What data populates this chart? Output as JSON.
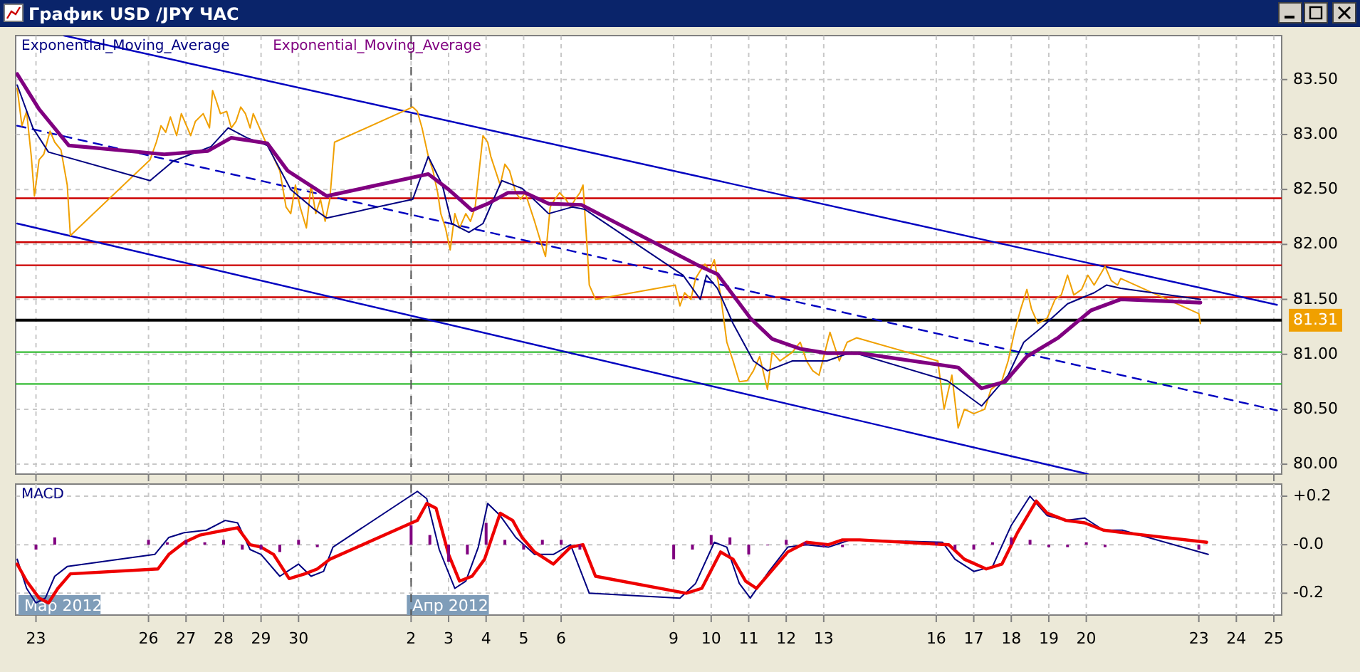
{
  "chart_data": [
    {
      "type": "line",
      "title": "График USD /JPY ЧАС",
      "xlim": [
        "2012-03-22T11:00",
        "2012-04-25T05:00"
      ],
      "ylim": [
        79.91,
        83.9
      ],
      "xticks": [
        {
          "value": "2012-03-23",
          "label": null
        },
        {
          "value": "2012-03-26",
          "label": null
        },
        {
          "value": "2012-03-27",
          "label": null
        },
        {
          "value": "2012-03-28",
          "label": null
        },
        {
          "value": "2012-03-29",
          "label": null
        },
        {
          "value": "2012-03-30",
          "label": null
        },
        {
          "value": "2012-04-02",
          "label": null
        },
        {
          "value": "2012-04-03",
          "label": null
        },
        {
          "value": "2012-04-04",
          "label": null
        },
        {
          "value": "2012-04-05",
          "label": null
        },
        {
          "value": "2012-04-06",
          "label": null
        },
        {
          "value": "2012-04-09",
          "label": null
        },
        {
          "value": "2012-04-10",
          "label": null
        },
        {
          "value": "2012-04-11",
          "label": null
        },
        {
          "value": "2012-04-12",
          "label": null
        },
        {
          "value": "2012-04-13",
          "label": null
        },
        {
          "value": "2012-04-16",
          "label": null
        },
        {
          "value": "2012-04-17",
          "label": null
        },
        {
          "value": "2012-04-18",
          "label": null
        },
        {
          "value": "2012-04-19",
          "label": null
        },
        {
          "value": "2012-04-20",
          "label": null
        },
        {
          "value": "2012-04-23",
          "label": null
        },
        {
          "value": "2012-04-24",
          "label": null
        },
        {
          "value": "2012-04-25",
          "label": null
        }
      ],
      "yticks": [
        {
          "value": 80,
          "label": "80.00"
        },
        {
          "value": 80.5,
          "label": "80.50"
        },
        {
          "value": 81,
          "label": "81.00"
        },
        {
          "value": 81.5,
          "label": "81.50"
        },
        {
          "value": 82,
          "label": "82.00"
        },
        {
          "value": 82.5,
          "label": "82.50"
        },
        {
          "value": 83,
          "label": "83.00"
        },
        {
          "value": 83.5,
          "label": "83.50"
        }
      ],
      "tick_labels": "y",
      "grid": true,
      "legend": "top left",
      "ref_lines": [
        {
          "axis": "y",
          "value": 82.42,
          "color": "#cc0000"
        },
        {
          "axis": "y",
          "value": 82.02,
          "color": "#cc0000"
        },
        {
          "axis": "y",
          "value": 81.81,
          "color": "#cc0000"
        },
        {
          "axis": "y",
          "value": 81.52,
          "color": "#cc0000"
        },
        {
          "axis": "y",
          "value": 81.02,
          "color": "#33bb33"
        },
        {
          "axis": "y",
          "value": 80.73,
          "color": "#33bb33"
        },
        {
          "axis": "y",
          "value": 81.31,
          "label": "81.31",
          "color": "#000000"
        },
        {
          "axis": "x",
          "value": "2012-04-02",
          "color": "#555555",
          "line_style": "dashed"
        }
      ],
      "series": [
        {
          "color": "#0000c0",
          "x": [
            "2012-03-23T18:00",
            "2012-04-25T02:00"
          ],
          "values": [
            83.9,
            81.45
          ]
        },
        {
          "color": "#0000c0",
          "line_style": "dashed",
          "x": [
            "2012-03-22T12:00",
            "2012-04-25T02:00"
          ],
          "values": [
            83.08,
            80.49
          ]
        },
        {
          "color": "#0000c0",
          "x": [
            "2012-03-22T12:00",
            "2012-04-20T01:00"
          ],
          "values": [
            82.19,
            79.91
          ]
        },
        {
          "color": "#f0a000",
          "x": [
            "2012-03-22T12:00",
            "2012-03-22T15:00",
            "2012-03-22T18:00",
            "2012-03-22T21:00",
            "2012-03-22T23:00",
            "2012-03-23T02:00",
            "2012-03-23T05:00",
            "2012-03-23T09:00",
            "2012-03-23T12:00",
            "2012-03-23T16:00",
            "2012-03-23T20:00",
            "2012-03-23T22:00",
            "2012-03-26T01:00",
            "2012-03-26T05:00",
            "2012-03-26T08:00",
            "2012-03-26T11:00",
            "2012-03-26T14:00",
            "2012-03-26T18:00",
            "2012-03-26T21:00",
            "2012-03-27T03:00",
            "2012-03-27T06:00",
            "2012-03-27T11:00",
            "2012-03-27T15:00",
            "2012-03-27T17:00",
            "2012-03-27T19:00",
            "2012-03-27T22:00",
            "2012-03-28T02:00",
            "2012-03-28T05:00",
            "2012-03-28T08:00",
            "2012-03-28T11:00",
            "2012-03-28T14:00",
            "2012-03-28T17:00",
            "2012-03-28T19:00",
            "2012-03-28T23:00",
            "2012-03-29T03:00",
            "2012-03-29T06:00",
            "2012-03-29T10:00",
            "2012-03-29T12:00",
            "2012-03-29T16:00",
            "2012-03-29T19:00",
            "2012-03-29T22:00",
            "2012-03-30T01:00",
            "2012-03-30T05:00",
            "2012-03-30T08:00",
            "2012-03-30T11:00",
            "2012-03-30T14:00",
            "2012-03-30T17:00",
            "2012-03-30T20:00",
            "2012-03-30T23:00",
            "2012-04-02T01:00",
            "2012-04-02T04:00",
            "2012-04-02T07:00",
            "2012-04-02T09:00",
            "2012-04-02T11:00",
            "2012-04-02T14:00",
            "2012-04-02T17:00",
            "2012-04-02T19:00",
            "2012-04-02T22:00",
            "2012-04-03T01:00",
            "2012-04-03T04:00",
            "2012-04-03T07:00",
            "2012-04-03T11:00",
            "2012-04-03T14:00",
            "2012-04-03T17:00",
            "2012-04-03T20:00",
            "2012-04-03T22:00",
            "2012-04-04T01:00",
            "2012-04-04T03:00",
            "2012-04-04T06:00",
            "2012-04-04T09:00",
            "2012-04-04T12:00",
            "2012-04-04T15:00",
            "2012-04-04T19:00",
            "2012-04-04T22:00",
            "2012-04-05T01:00",
            "2012-04-05T04:00",
            "2012-04-05T07:00",
            "2012-04-05T11:00",
            "2012-04-05T14:00",
            "2012-04-05T17:00",
            "2012-04-05T20:00",
            "2012-04-05T23:00",
            "2012-04-06T03:00",
            "2012-04-06T06:00",
            "2012-04-06T09:00",
            "2012-04-06T12:00",
            "2012-04-06T14:00",
            "2012-04-06T17:00",
            "2012-04-06T18:00",
            "2012-04-06T22:00",
            "2012-04-09T01:00",
            "2012-04-09T04:00",
            "2012-04-09T07:00",
            "2012-04-09T11:00",
            "2012-04-09T14:00",
            "2012-04-09T17:00",
            "2012-04-09T20:00",
            "2012-04-09T23:00",
            "2012-04-10T02:00",
            "2012-04-10T06:00",
            "2012-04-10T10:00",
            "2012-04-10T14:00",
            "2012-04-10T18:00",
            "2012-04-10T23:00",
            "2012-04-11T03:00",
            "2012-04-11T07:00",
            "2012-04-11T12:00",
            "2012-04-11T15:00",
            "2012-04-11T20:00",
            "2012-04-12T00:00",
            "2012-04-12T04:00",
            "2012-04-12T09:00",
            "2012-04-12T13:00",
            "2012-04-12T17:00",
            "2012-04-12T21:00",
            "2012-04-13T04:00",
            "2012-04-13T10:00",
            "2012-04-13T15:00",
            "2012-04-13T21:00",
            "2012-04-16T01:00",
            "2012-04-16T05:00",
            "2012-04-16T10:00",
            "2012-04-16T14:00",
            "2012-04-16T18:00",
            "2012-04-17T00:00",
            "2012-04-17T07:00",
            "2012-04-17T11:00",
            "2012-04-17T18:00",
            "2012-04-17T22:00",
            "2012-04-18T02:00",
            "2012-04-18T06:00",
            "2012-04-18T10:00",
            "2012-04-18T13:00",
            "2012-04-18T17:00",
            "2012-04-18T23:00",
            "2012-04-19T04:00",
            "2012-04-19T08:00",
            "2012-04-19T12:00",
            "2012-04-19T16:00",
            "2012-04-19T21:00",
            "2012-04-20T01:00",
            "2012-04-20T05:00",
            "2012-04-20T12:00",
            "2012-04-20T16:00",
            "2012-04-20T20:00",
            "2012-04-20T22:00",
            "2012-04-23T00:00",
            "2012-04-23T01:00"
          ],
          "values": [
            83.42,
            83.08,
            83.21,
            82.8,
            82.44,
            82.77,
            82.82,
            83.03,
            82.93,
            82.86,
            82.54,
            82.08,
            82.77,
            82.93,
            83.08,
            83.02,
            83.16,
            82.99,
            83.19,
            82.99,
            83.12,
            83.19,
            83.06,
            83.4,
            83.32,
            83.19,
            83.21,
            83.06,
            83.12,
            83.25,
            83.19,
            83.06,
            83.19,
            83.06,
            82.93,
            82.86,
            82.73,
            82.67,
            82.34,
            82.28,
            82.54,
            82.34,
            82.15,
            82.54,
            82.28,
            82.41,
            82.21,
            82.41,
            82.93,
            83.25,
            83.21,
            83.06,
            82.93,
            82.8,
            82.67,
            82.47,
            82.28,
            82.15,
            81.95,
            82.28,
            82.15,
            82.28,
            82.21,
            82.34,
            82.73,
            82.99,
            82.93,
            82.8,
            82.67,
            82.54,
            82.73,
            82.67,
            82.47,
            82.41,
            82.47,
            82.34,
            82.21,
            82.02,
            81.89,
            82.34,
            82.41,
            82.47,
            82.41,
            82.34,
            82.41,
            82.47,
            82.54,
            81.89,
            81.63,
            81.5,
            81.63,
            81.44,
            81.56,
            81.5,
            81.69,
            81.76,
            81.82,
            81.76,
            81.86,
            81.54,
            81.11,
            80.94,
            80.75,
            80.76,
            80.85,
            80.98,
            80.68,
            81.02,
            80.94,
            80.98,
            81.02,
            81.11,
            80.94,
            80.85,
            80.81,
            81.2,
            80.94,
            81.11,
            81.15,
            80.94,
            80.5,
            80.81,
            80.33,
            80.5,
            80.46,
            80.5,
            80.68,
            80.76,
            80.94,
            81.2,
            81.41,
            81.59,
            81.41,
            81.28,
            81.33,
            81.5,
            81.54,
            81.72,
            81.54,
            81.59,
            81.72,
            81.63,
            81.8,
            81.67,
            81.63,
            81.69,
            81.37,
            81.28
          ]
        },
        {
          "name": "Exponential_Moving_Average",
          "color": "#000080",
          "x": [
            "2012-03-22T12:00",
            "2012-03-22T22:00",
            "2012-03-23T08:00",
            "2012-03-26T01:00",
            "2012-03-26T16:00",
            "2012-03-27T16:00",
            "2012-03-28T03:00",
            "2012-03-28T15:00",
            "2012-03-29T04:00",
            "2012-03-29T19:00",
            "2012-03-30T10:00",
            "2012-03-30T18:00",
            "2012-04-02T01:00",
            "2012-04-02T11:00",
            "2012-04-02T20:00",
            "2012-04-03T02:00",
            "2012-04-03T13:00",
            "2012-04-03T22:00",
            "2012-04-04T10:00",
            "2012-04-04T23:00",
            "2012-04-05T16:00",
            "2012-04-06T07:00",
            "2012-04-06T15:00",
            "2012-04-09T06:00",
            "2012-04-09T17:00",
            "2012-04-09T21:00",
            "2012-04-10T04:00",
            "2012-04-10T14:00",
            "2012-04-11T03:00",
            "2012-04-11T12:00",
            "2012-04-12T04:00",
            "2012-04-13T02:00",
            "2012-04-13T18:00",
            "2012-04-16T07:00",
            "2012-04-17T05:00",
            "2012-04-17T22:00",
            "2012-04-18T08:00",
            "2012-04-18T19:00",
            "2012-04-19T12:00",
            "2012-04-20T05:00",
            "2012-04-20T13:00",
            "2012-04-20T22:00",
            "2012-04-23T01:00"
          ],
          "values": [
            83.45,
            83.06,
            82.84,
            82.58,
            82.76,
            82.89,
            83.06,
            82.97,
            82.9,
            82.5,
            82.32,
            82.24,
            82.41,
            82.8,
            82.54,
            82.19,
            82.11,
            82.19,
            82.58,
            82.51,
            82.28,
            82.34,
            82.32,
            81.72,
            81.5,
            81.72,
            81.6,
            81.28,
            80.94,
            80.85,
            80.94,
            80.94,
            81.02,
            80.76,
            80.53,
            80.81,
            81.11,
            81.24,
            81.46,
            81.56,
            81.63,
            81.6,
            81.5
          ]
        },
        {
          "name": "Exponential_Moving_Average",
          "color": "#800080",
          "x": [
            "2012-03-22T12:00",
            "2012-03-23T02:00",
            "2012-03-23T21:00",
            "2012-03-26T10:00",
            "2012-03-27T14:00",
            "2012-03-28T05:00",
            "2012-03-29T04:00",
            "2012-03-29T17:00",
            "2012-03-30T18:00",
            "2012-04-02T11:00",
            "2012-04-03T00:00",
            "2012-04-03T15:00",
            "2012-04-04T01:00",
            "2012-04-04T14:00",
            "2012-04-05T01:00",
            "2012-04-05T16:00",
            "2012-04-06T13:00",
            "2012-04-09T17:00",
            "2012-04-10T04:00",
            "2012-04-11T01:00",
            "2012-04-11T15:00",
            "2012-04-12T09:00",
            "2012-04-13T02:00",
            "2012-04-13T23:00",
            "2012-04-16T14:00",
            "2012-04-17T05:00",
            "2012-04-17T20:00",
            "2012-04-18T10:00",
            "2012-04-19T06:00",
            "2012-04-20T03:00",
            "2012-04-20T22:00",
            "2012-04-23T01:00"
          ],
          "values": [
            83.55,
            83.23,
            82.9,
            82.82,
            82.85,
            82.97,
            82.92,
            82.67,
            82.44,
            82.64,
            82.5,
            82.31,
            82.37,
            82.47,
            82.47,
            82.37,
            82.36,
            81.8,
            81.73,
            81.33,
            81.14,
            81.05,
            81.01,
            81.01,
            80.88,
            80.69,
            80.75,
            80.98,
            81.15,
            81.4,
            81.5,
            81.47
          ]
        }
      ]
    },
    {
      "type": "line",
      "title": "MACD",
      "xlim": [
        "2012-03-22T11:00",
        "2012-04-25T05:00"
      ],
      "ylim": [
        -0.29,
        0.25
      ],
      "xticks": [
        {
          "value": "2012-03-23",
          "label": "23"
        },
        {
          "value": "2012-03-26",
          "label": "26"
        },
        {
          "value": "2012-03-27",
          "label": "27"
        },
        {
          "value": "2012-03-28",
          "label": "28"
        },
        {
          "value": "2012-03-29",
          "label": "29"
        },
        {
          "value": "2012-03-30",
          "label": "30"
        },
        {
          "value": "2012-04-02",
          "label": "2"
        },
        {
          "value": "2012-04-03",
          "label": "3"
        },
        {
          "value": "2012-04-04",
          "label": "4"
        },
        {
          "value": "2012-04-05",
          "label": "5"
        },
        {
          "value": "2012-04-06",
          "label": "6"
        },
        {
          "value": "2012-04-09",
          "label": "9"
        },
        {
          "value": "2012-04-10",
          "label": "10"
        },
        {
          "value": "2012-04-11",
          "label": "11"
        },
        {
          "value": "2012-04-12",
          "label": "12"
        },
        {
          "value": "2012-04-13",
          "label": "13"
        },
        {
          "value": "2012-04-16",
          "label": "16"
        },
        {
          "value": "2012-04-17",
          "label": "17"
        },
        {
          "value": "2012-04-18",
          "label": "18"
        },
        {
          "value": "2012-04-19",
          "label": "19"
        },
        {
          "value": "2012-04-20",
          "label": "20"
        },
        {
          "value": "2012-04-23",
          "label": "23"
        },
        {
          "value": "2012-04-24",
          "label": "24"
        },
        {
          "value": "2012-04-25",
          "label": "25"
        }
      ],
      "yticks": [
        {
          "value": -0.2,
          "label": "-0.2"
        },
        {
          "value": 0,
          "label": "-0.0"
        },
        {
          "value": 0.2,
          "label": "+0.2"
        }
      ],
      "grid": true,
      "annotations": [
        "Мар 2012"
      ],
      "ref_lines": [
        {
          "axis": "x",
          "value": "2012-04-02",
          "label": "Апр 2012",
          "color": "#555555",
          "line_style": "dashed"
        }
      ],
      "series": [
        {
          "type": "bar",
          "color": "#800080",
          "x": [
            "2012-03-23T00:00",
            "2012-03-23T12:00",
            "2012-03-26T00:00",
            "2012-03-26T12:00",
            "2012-03-27T00:00",
            "2012-03-27T12:00",
            "2012-03-28T00:00",
            "2012-03-28T12:00",
            "2012-03-29T00:00",
            "2012-03-29T12:00",
            "2012-03-30T00:00",
            "2012-03-30T12:00",
            "2012-04-02T00:00",
            "2012-04-02T12:00",
            "2012-04-03T00:00",
            "2012-04-03T12:00",
            "2012-04-04T00:00",
            "2012-04-04T12:00",
            "2012-04-05T00:00",
            "2012-04-05T12:00",
            "2012-04-06T00:00",
            "2012-04-06T12:00",
            "2012-04-09T00:00",
            "2012-04-09T12:00",
            "2012-04-10T00:00",
            "2012-04-10T12:00",
            "2012-04-11T00:00",
            "2012-04-11T12:00",
            "2012-04-12T00:00",
            "2012-04-12T12:00",
            "2012-04-13T00:00",
            "2012-04-13T12:00",
            "2012-04-16T00:00",
            "2012-04-16T12:00",
            "2012-04-17T00:00",
            "2012-04-17T12:00",
            "2012-04-18T00:00",
            "2012-04-18T12:00",
            "2012-04-19T00:00",
            "2012-04-19T12:00",
            "2012-04-20T00:00",
            "2012-04-20T12:00",
            "2012-04-23T00:00"
          ],
          "values": [
            -0.02,
            0.03,
            0.02,
            0.01,
            0.02,
            0.01,
            0.02,
            -0.02,
            -0.02,
            -0.03,
            0.02,
            -0.01,
            0.08,
            0.04,
            -0.07,
            -0.04,
            0.09,
            0.02,
            -0.02,
            0.02,
            0.02,
            -0.02,
            -0.06,
            -0.02,
            0.04,
            0.03,
            -0.04,
            0,
            0.02,
            0.01,
            -0.01,
            -0.01,
            0.01,
            -0.02,
            -0.02,
            0.01,
            0.03,
            0.02,
            -0.01,
            -0.01,
            0.01,
            -0.01,
            -0.02
          ]
        },
        {
          "color": "#000080",
          "x": [
            "2012-03-22T12:00",
            "2012-03-22T18:00",
            "2012-03-23T00:00",
            "2012-03-23T06:00",
            "2012-03-23T12:00",
            "2012-03-23T20:00",
            "2012-03-26T04:00",
            "2012-03-26T13:00",
            "2012-03-26T23:00",
            "2012-03-27T13:00",
            "2012-03-28T01:00",
            "2012-03-28T09:00",
            "2012-03-28T17:00",
            "2012-03-29T00:00",
            "2012-03-29T12:00",
            "2012-03-30T00:00",
            "2012-03-30T08:00",
            "2012-03-30T16:00",
            "2012-03-30T22:00",
            "2012-04-02T04:00",
            "2012-04-02T10:00",
            "2012-04-02T18:00",
            "2012-04-03T04:00",
            "2012-04-03T11:00",
            "2012-04-03T19:00",
            "2012-04-04T01:00",
            "2012-04-04T09:00",
            "2012-04-04T19:00",
            "2012-04-05T07:00",
            "2012-04-05T19:00",
            "2012-04-06T06:00",
            "2012-04-06T18:00",
            "2012-04-09T04:00",
            "2012-04-09T14:00",
            "2012-04-10T02:00",
            "2012-04-10T10:00",
            "2012-04-10T18:00",
            "2012-04-11T01:00",
            "2012-04-11T13:00",
            "2012-04-12T01:00",
            "2012-04-12T13:00",
            "2012-04-13T03:00",
            "2012-04-13T17:00",
            "2012-04-16T04:00",
            "2012-04-16T12:00",
            "2012-04-17T00:00",
            "2012-04-17T12:00",
            "2012-04-18T00:00",
            "2012-04-18T12:00",
            "2012-04-18T23:00",
            "2012-04-19T11:00",
            "2012-04-19T23:00",
            "2012-04-20T11:00",
            "2012-04-20T23:00",
            "2012-04-23T06:00"
          ],
          "values": [
            -0.06,
            -0.18,
            -0.24,
            -0.22,
            -0.13,
            -0.09,
            -0.04,
            0.03,
            0.05,
            0.06,
            0.1,
            0.09,
            -0.02,
            -0.04,
            -0.13,
            -0.08,
            -0.13,
            -0.11,
            -0.01,
            0.22,
            0.19,
            -0.02,
            -0.18,
            -0.15,
            -0.01,
            0.17,
            0.12,
            0.03,
            -0.04,
            -0.04,
            0,
            -0.2,
            -0.22,
            -0.16,
            0.01,
            -0.01,
            -0.16,
            -0.22,
            -0.11,
            -0.01,
            0,
            -0.01,
            0.02,
            0.01,
            -0.06,
            -0.11,
            -0.09,
            0.08,
            0.2,
            0.12,
            0.1,
            0.11,
            0.06,
            0.06,
            -0.04
          ]
        },
        {
          "color": "#ee0000",
          "x": [
            "2012-03-22T12:00",
            "2012-03-22T18:00",
            "2012-03-23T02:00",
            "2012-03-23T08:00",
            "2012-03-23T14:00",
            "2012-03-23T22:00",
            "2012-03-26T06:00",
            "2012-03-26T13:00",
            "2012-03-26T23:00",
            "2012-03-27T09:00",
            "2012-03-27T17:00",
            "2012-03-28T01:00",
            "2012-03-28T09:00",
            "2012-03-28T17:00",
            "2012-03-29T00:00",
            "2012-03-29T08:00",
            "2012-03-29T18:00",
            "2012-03-30T04:00",
            "2012-03-30T12:00",
            "2012-03-30T20:00",
            "2012-04-02T04:00",
            "2012-04-02T10:00",
            "2012-04-02T16:00",
            "2012-04-03T00:00",
            "2012-04-03T07:00",
            "2012-04-03T15:00",
            "2012-04-03T23:00",
            "2012-04-04T09:00",
            "2012-04-04T17:00",
            "2012-04-04T23:00",
            "2012-04-05T07:00",
            "2012-04-05T19:00",
            "2012-04-06T06:00",
            "2012-04-06T14:00",
            "2012-04-06T22:00",
            "2012-04-09T08:00",
            "2012-04-09T18:00",
            "2012-04-10T06:00",
            "2012-04-10T14:00",
            "2012-04-10T22:00",
            "2012-04-11T05:00",
            "2012-04-11T13:00",
            "2012-04-12T01:00",
            "2012-04-12T13:00",
            "2012-04-13T03:00",
            "2012-04-13T12:00",
            "2012-04-13T23:00",
            "2012-04-16T08:00",
            "2012-04-16T18:00",
            "2012-04-17T08:00",
            "2012-04-17T18:00",
            "2012-04-18T04:00",
            "2012-04-18T16:00",
            "2012-04-18T23:00",
            "2012-04-19T11:00",
            "2012-04-19T23:00",
            "2012-04-20T11:00",
            "2012-04-20T23:00",
            "2012-04-23T05:00"
          ],
          "values": [
            -0.08,
            -0.15,
            -0.22,
            -0.24,
            -0.18,
            -0.12,
            -0.1,
            -0.04,
            0.01,
            0.04,
            0.05,
            0.06,
            0.07,
            0,
            -0.01,
            -0.04,
            -0.14,
            -0.12,
            -0.1,
            -0.06,
            0.1,
            0.17,
            0.15,
            -0.04,
            -0.15,
            -0.13,
            -0.06,
            0.13,
            0.1,
            0.03,
            -0.03,
            -0.08,
            -0.01,
            0,
            -0.13,
            -0.2,
            -0.18,
            -0.03,
            -0.06,
            -0.15,
            -0.18,
            -0.12,
            -0.03,
            0.01,
            0,
            0.02,
            0.02,
            0,
            -0.06,
            -0.1,
            -0.08,
            0.05,
            0.18,
            0.13,
            0.1,
            0.09,
            0.06,
            0.05,
            0.01
          ]
        }
      ]
    }
  ]
}
